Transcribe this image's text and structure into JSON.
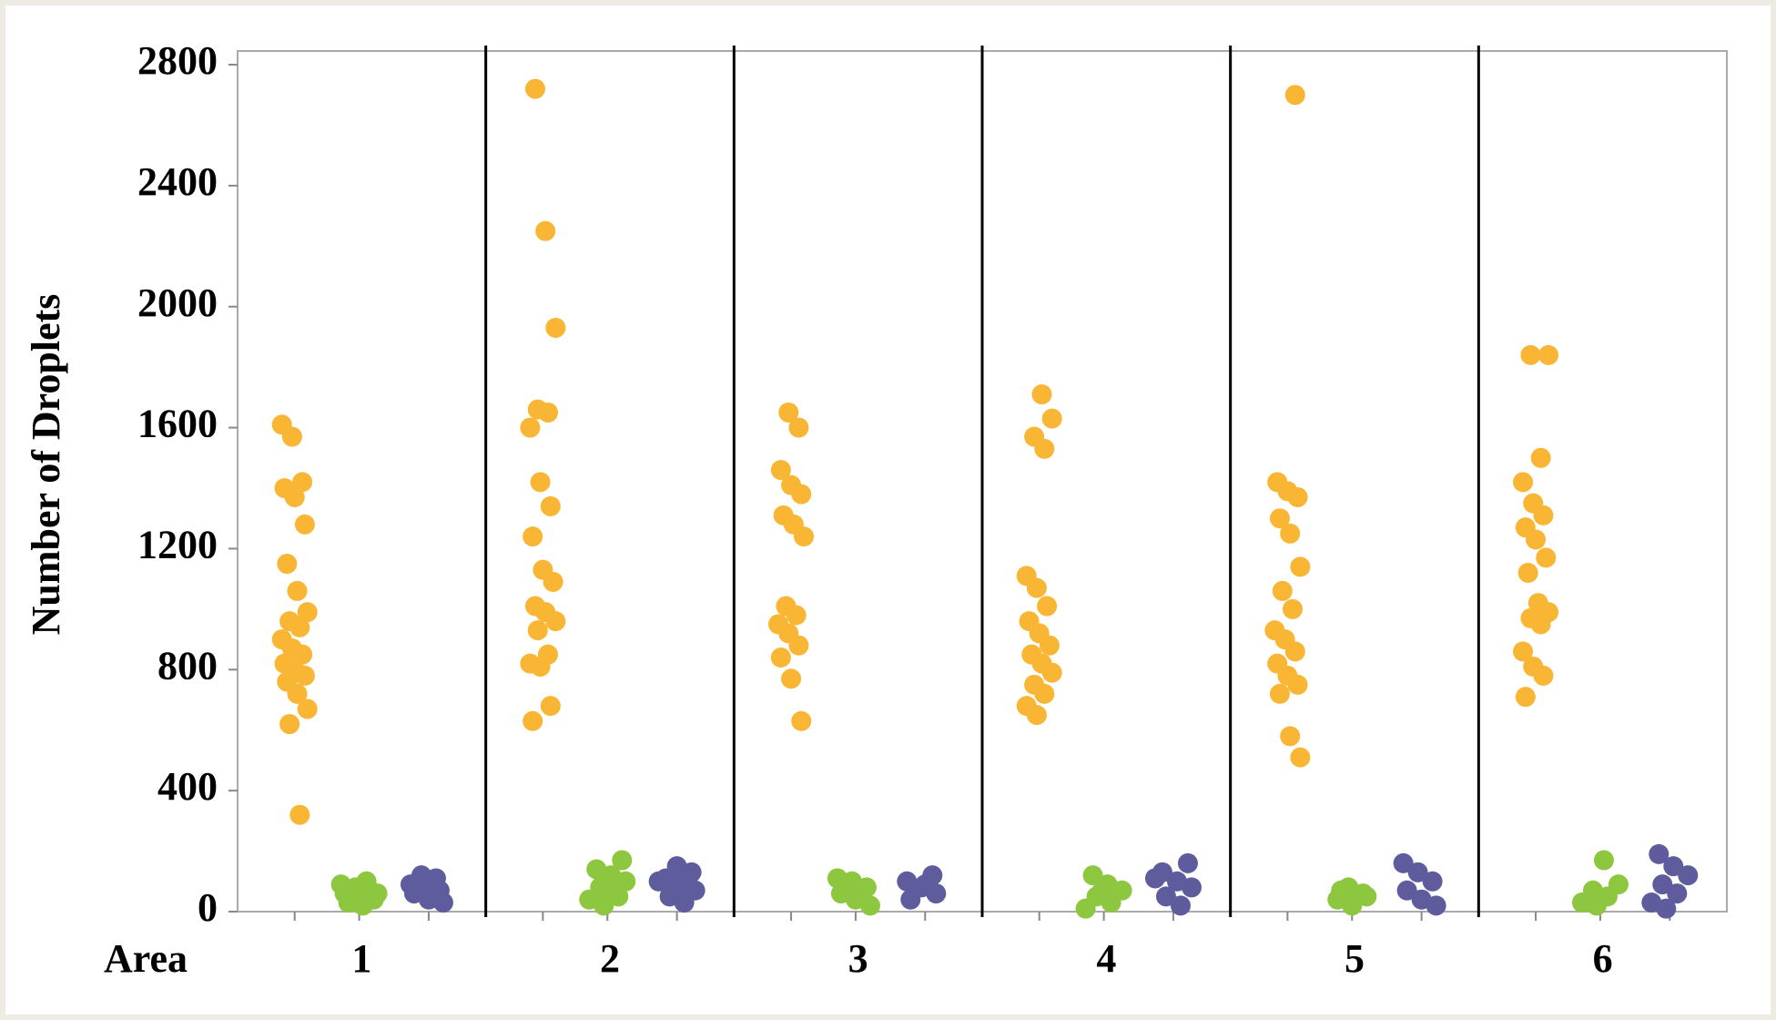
{
  "chart_data": {
    "type": "strip",
    "x_label": "Area",
    "y_label": "Number of Droplets",
    "categories": [
      "1",
      "2",
      "3",
      "4",
      "5",
      "6"
    ],
    "ylim": [
      0,
      2800
    ],
    "yticks": [
      0,
      400,
      800,
      1200,
      1600,
      2000,
      2400,
      2800
    ],
    "series": [
      {
        "color": "#f8b634",
        "values": [
          [
            1610,
            1570,
            1420,
            1400,
            1370,
            1280,
            1150,
            1060,
            990,
            960,
            940,
            900,
            870,
            850,
            820,
            800,
            780,
            760,
            720,
            670,
            620,
            320
          ],
          [
            2720,
            2250,
            1930,
            1660,
            1650,
            1600,
            1420,
            1340,
            1240,
            1130,
            1090,
            1010,
            990,
            960,
            930,
            850,
            820,
            810,
            680,
            630
          ],
          [
            1650,
            1600,
            1460,
            1410,
            1380,
            1310,
            1280,
            1240,
            1010,
            980,
            950,
            920,
            880,
            840,
            770,
            630
          ],
          [
            1710,
            1630,
            1570,
            1530,
            1110,
            1070,
            1010,
            960,
            920,
            880,
            850,
            820,
            790,
            750,
            720,
            680,
            650
          ],
          [
            2700,
            1420,
            1390,
            1370,
            1300,
            1250,
            1140,
            1060,
            1000,
            930,
            900,
            860,
            820,
            780,
            750,
            720,
            580,
            510
          ],
          [
            1840,
            1840,
            1500,
            1420,
            1350,
            1310,
            1270,
            1230,
            1170,
            1120,
            1020,
            990,
            970,
            950,
            860,
            810,
            780,
            710
          ]
        ]
      },
      {
        "color": "#8dc63f",
        "values": [
          [
            100,
            90,
            80,
            70,
            60,
            50,
            40,
            30,
            20,
            60,
            40
          ],
          [
            170,
            140,
            120,
            100,
            80,
            60,
            40,
            20,
            50
          ],
          [
            110,
            100,
            80,
            60,
            40,
            20,
            70
          ],
          [
            120,
            90,
            70,
            50,
            30,
            10,
            60
          ],
          [
            80,
            60,
            40,
            20,
            50,
            70
          ],
          [
            170,
            90,
            70,
            50,
            30,
            20
          ]
        ]
      },
      {
        "color": "#5e5c9c",
        "values": [
          [
            120,
            110,
            90,
            80,
            70,
            60,
            40,
            30
          ],
          [
            150,
            130,
            110,
            90,
            70,
            50,
            30,
            100
          ],
          [
            120,
            100,
            80,
            60,
            40,
            90
          ],
          [
            160,
            130,
            100,
            80,
            50,
            20,
            110
          ],
          [
            160,
            130,
            100,
            70,
            40,
            20
          ],
          [
            190,
            150,
            120,
            90,
            60,
            30,
            10
          ]
        ]
      }
    ]
  }
}
